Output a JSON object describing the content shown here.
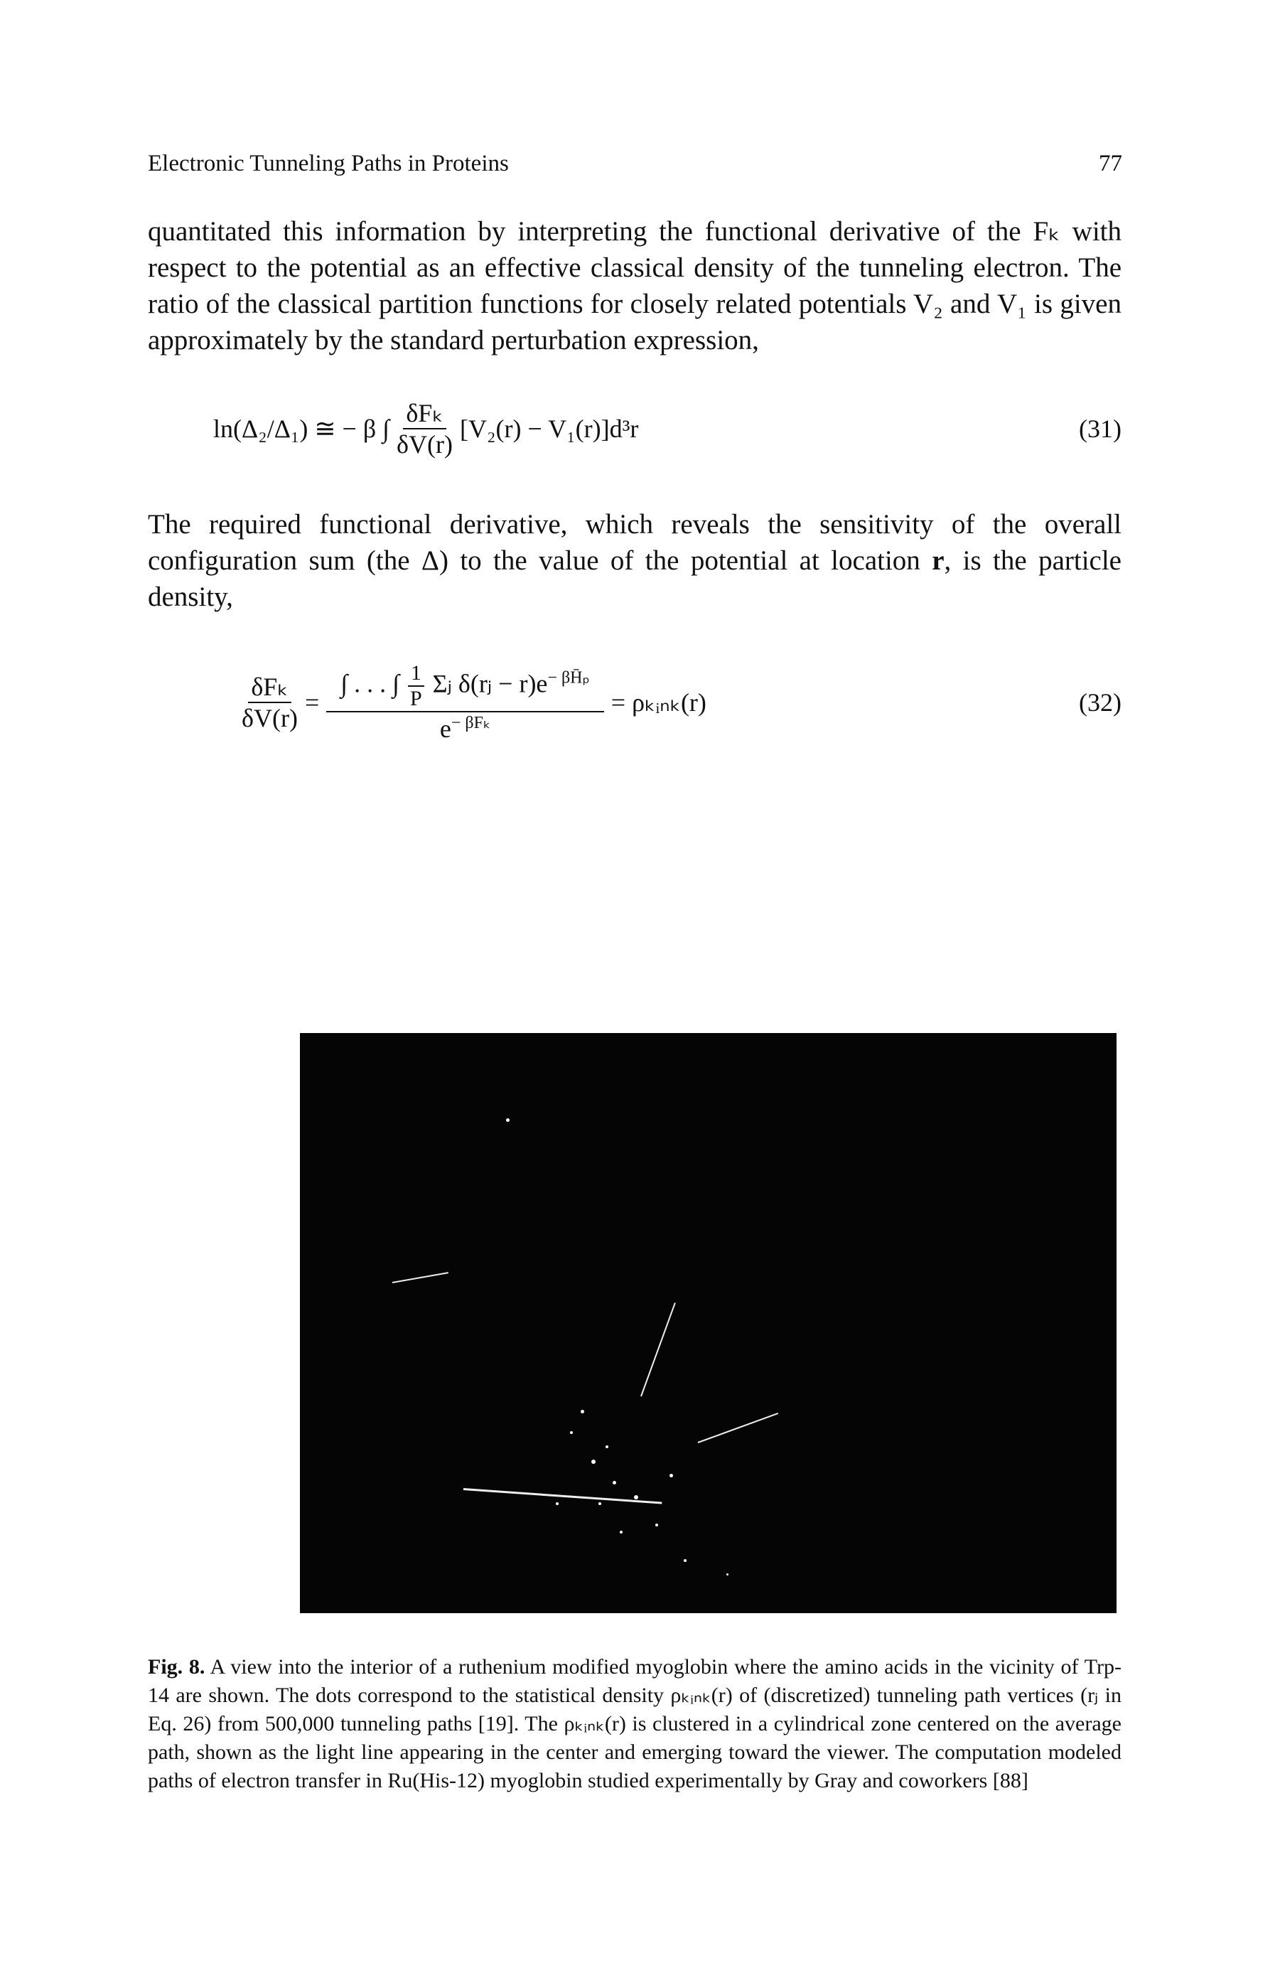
{
  "header": {
    "title": "Electronic Tunneling Paths in Proteins",
    "page_number": "77"
  },
  "paragraphs": [
    {
      "text": "quantitated this information by interpreting the functional derivative of the Fₖ with respect to the potential as an effective classical density of the tunneling electron. The ratio of the classical partition functions for closely related potentials V₂ and V₁ is given approximately by the standard perturbation expression,"
    },
    {
      "before": "The required functional derivative, which reveals the sensitivity of the overall configuration sum (the Δ) to the value of the potential at location",
      "bold": "r",
      "after": ", is the particle density,"
    }
  ],
  "equations": [
    {
      "lhs": "ln(Δ₂/Δ₁) ≅ − β ∫",
      "numerator": "δFₖ",
      "denominator": "δV(r)",
      "rest": "[V₂(r) − V₁(r)]d³r",
      "number": "(31)"
    },
    {
      "lhs_numerator": "δFₖ",
      "lhs_denominator": "δV(r)",
      "equals": "=",
      "integral": "∫ . . . ∫",
      "frac_num": "1",
      "frac_den": "P",
      "sum": "Σⱼ δ(rⱼ − r)e",
      "sum_exp": "− βH̄ₚ",
      "den_base": "e",
      "den_exp": "− βFₖ",
      "rhs": "= ρₖᵢₙₖ(r)",
      "number": "(32)"
    }
  ],
  "figure": {
    "label": "Fig. 8.",
    "caption": "A view into the interior of a ruthenium modified myoglobin where the amino acids in the vicinity of Trp-14 are shown. The dots correspond to the statistical density ρₖᵢₙₖ(r) of (discretized) tunneling path vertices (rⱼ in Eq. 26) from 500,000 tunneling paths [19]. The ρₖᵢₙₖ(r) is clustered in a cylindrical zone centered on the average path, shown as the light line appearing in the center and emerging toward the viewer. The computation modeled paths of electron transfer in Ru(His-12) myoglobin studied experimentally by Gray and coworkers [88]"
  }
}
